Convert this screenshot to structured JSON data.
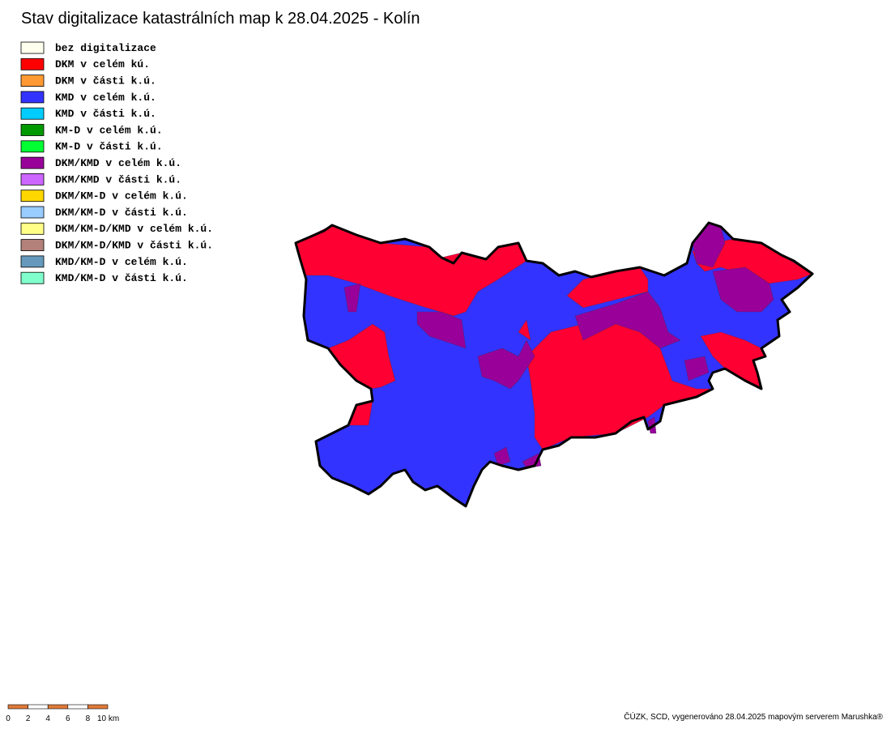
{
  "header": {
    "title": "Stav digitalizace katastrálních map k 28.04.2025 - Kolín"
  },
  "legend": [
    {
      "label": "bez digitalizace",
      "color": "#ffffee"
    },
    {
      "label": "DKM v celém kú.",
      "color": "#ff0000"
    },
    {
      "label": "DKM v části k.ú.",
      "color": "#ff9933"
    },
    {
      "label": "KMD v celém k.ú.",
      "color": "#3333ff"
    },
    {
      "label": "KMD v části k.ú.",
      "color": "#00ccff"
    },
    {
      "label": "KM-D v celém k.ú.",
      "color": "#009900"
    },
    {
      "label": "KM-D v části k.ú.",
      "color": "#00ff33"
    },
    {
      "label": "DKM/KMD v celém k.ú.",
      "color": "#990099"
    },
    {
      "label": "DKM/KMD v části k.ú.",
      "color": "#cc66ff"
    },
    {
      "label": "DKM/KM-D v celém k.ú.",
      "color": "#ffd700"
    },
    {
      "label": "DKM/KM-D v části k.ú.",
      "color": "#99ccff"
    },
    {
      "label": "DKM/KM-D/KMD v celém k.ú.",
      "color": "#ffff88"
    },
    {
      "label": "DKM/KM-D/KMD v části k.ú.",
      "color": "#b3807a"
    },
    {
      "label": "KMD/KM-D v celém k.ú.",
      "color": "#6699bb"
    },
    {
      "label": "KMD/KM-D v části k.ú.",
      "color": "#80ffcc"
    }
  ],
  "scale_bar": [
    "0",
    "2",
    "4",
    "6",
    "8",
    "10 km"
  ],
  "footer": {
    "credits": "ČÚZK, SCD, vygenerováno 28.04.2025 mapovým serverem Marushka®"
  }
}
